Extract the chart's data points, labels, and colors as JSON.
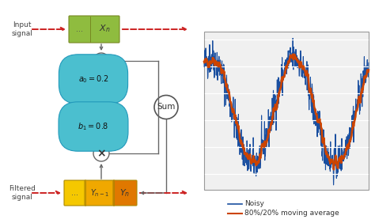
{
  "background_color": "#ffffff",
  "input_box_color": "#8fbc3f",
  "output_box_color_left": "#f5c800",
  "output_box_color_mid": "#f0a800",
  "output_box_color_right": "#e07800",
  "coeff_box_color": "#4bbfcf",
  "sum_circle_color": "#ffffff",
  "mult_circle_color": "#ffffff",
  "arrow_color": "#cc2222",
  "line_color": "#666666",
  "plot_bg_color": "#e8e8e8",
  "noisy_color": "#1a4fa0",
  "smooth_color": "#cc4400",
  "legend_noisy": "Noisy",
  "legend_smooth": "80%/20% moving average",
  "input_label": "Input\nsignal",
  "filtered_label": "Filtered\nsignal"
}
